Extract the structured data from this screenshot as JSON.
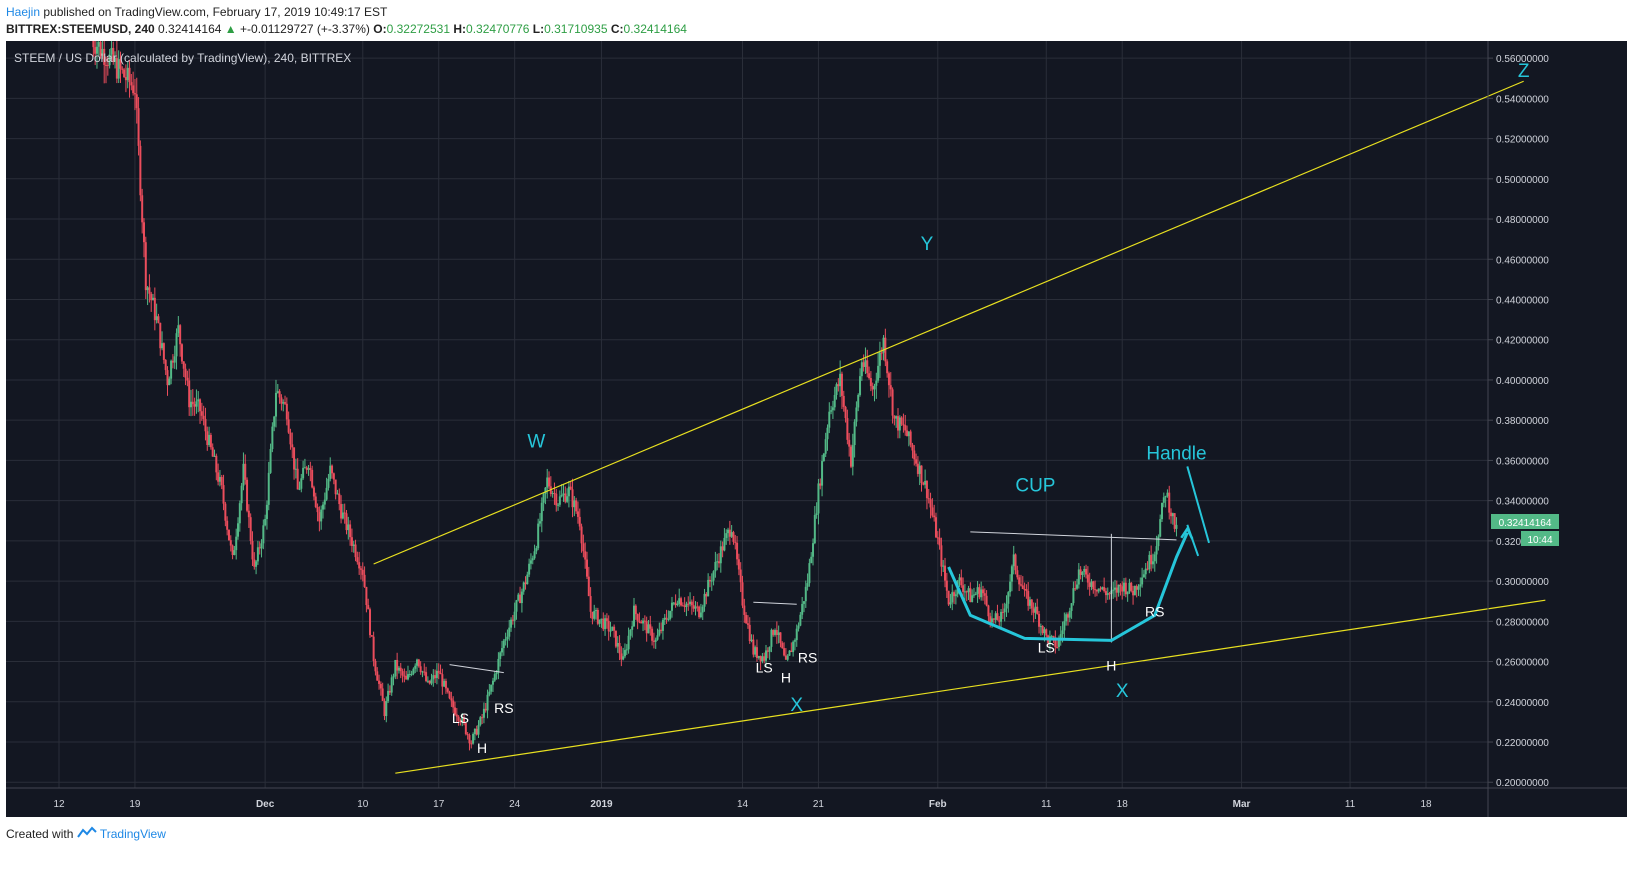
{
  "header": {
    "author": "Haejin",
    "published": "published on TradingView.com, February 17, 2019 10:49:17 EST",
    "symbol_line": "BITTREX:STEEMUSD, 240",
    "last_price": "0.32414164",
    "change_arrow": "▲",
    "change": "+-0.01129727 (+-3.37%)",
    "o_label": "O:",
    "o_value": "0.32272531",
    "h_label": "H:",
    "h_value": "0.32470776",
    "l_label": "L:",
    "l_value": "0.31710935",
    "c_label": "C:",
    "c_value": "0.32414164"
  },
  "footer": {
    "created_with": "Created with",
    "brand": "TradingView"
  },
  "colors": {
    "background": "#131722",
    "up": "#53b987",
    "down": "#eb4d5c",
    "trendline": "#e8e020",
    "annotation": "#26c6da",
    "last_price_badge": "#53b987",
    "grid": "#2a2e39",
    "axis_text": "#d1d4dc"
  },
  "chart_data": {
    "type": "candlestick",
    "title": "STEEM / US Dollar (calculated by TradingView), 240, BITTREX",
    "ylim": [
      0.19,
      0.57
    ],
    "y_ticks": [
      "0.56000000",
      "0.54000000",
      "0.52000000",
      "0.50000000",
      "0.48000000",
      "0.46000000",
      "0.44000000",
      "0.42000000",
      "0.40000000",
      "0.38000000",
      "0.36000000",
      "0.34000000",
      "0.32000000",
      "0.30000000",
      "0.28000000",
      "0.26000000",
      "0.24000000",
      "0.22000000",
      "0.20000000"
    ],
    "x_ticks": [
      {
        "label": "12",
        "date": "2018-11-12"
      },
      {
        "label": "19",
        "date": "2018-11-19"
      },
      {
        "label": "Dec",
        "date": "2018-12-01"
      },
      {
        "label": "10",
        "date": "2018-12-10"
      },
      {
        "label": "17",
        "date": "2018-12-17"
      },
      {
        "label": "24",
        "date": "2018-12-24"
      },
      {
        "label": "2019",
        "date": "2019-01-01"
      },
      {
        "label": "14",
        "date": "2019-01-14"
      },
      {
        "label": "21",
        "date": "2019-01-21"
      },
      {
        "label": "Feb",
        "date": "2019-02-01"
      },
      {
        "label": "11",
        "date": "2019-02-11"
      },
      {
        "label": "18",
        "date": "2019-02-18"
      },
      {
        "label": "Mar",
        "date": "2019-03-01"
      },
      {
        "label": "11",
        "date": "2019-03-11"
      },
      {
        "label": "18",
        "date": "2019-03-18"
      }
    ],
    "price_path": [
      [
        "2018-11-15",
        0.57
      ],
      [
        "2018-11-19",
        0.545
      ],
      [
        "2018-11-20",
        0.45
      ],
      [
        "2018-11-21",
        0.43
      ],
      [
        "2018-11-22",
        0.4
      ],
      [
        "2018-11-23",
        0.425
      ],
      [
        "2018-11-24",
        0.39
      ],
      [
        "2018-11-25",
        0.385
      ],
      [
        "2018-11-27",
        0.345
      ],
      [
        "2018-11-28",
        0.31
      ],
      [
        "2018-11-29",
        0.355
      ],
      [
        "2018-11-30",
        0.305
      ],
      [
        "2018-12-01",
        0.33
      ],
      [
        "2018-12-02",
        0.395
      ],
      [
        "2018-12-03",
        0.385
      ],
      [
        "2018-12-04",
        0.345
      ],
      [
        "2018-12-05",
        0.36
      ],
      [
        "2018-12-06",
        0.33
      ],
      [
        "2018-12-07",
        0.355
      ],
      [
        "2018-12-08",
        0.335
      ],
      [
        "2018-12-09",
        0.32
      ],
      [
        "2018-12-10",
        0.305
      ],
      [
        "2018-12-11",
        0.262
      ],
      [
        "2018-12-12",
        0.235
      ],
      [
        "2018-12-13",
        0.258
      ],
      [
        "2018-12-14",
        0.25
      ],
      [
        "2018-12-15",
        0.262
      ],
      [
        "2018-12-16",
        0.248
      ],
      [
        "2018-12-17",
        0.255
      ],
      [
        "2018-12-18",
        0.24
      ],
      [
        "2018-12-19",
        0.232
      ],
      [
        "2018-12-20",
        0.22
      ],
      [
        "2018-12-21",
        0.232
      ],
      [
        "2018-12-22",
        0.25
      ],
      [
        "2018-12-23",
        0.27
      ],
      [
        "2018-12-24",
        0.285
      ],
      [
        "2018-12-25",
        0.3
      ],
      [
        "2018-12-26",
        0.32
      ],
      [
        "2018-12-27",
        0.35
      ],
      [
        "2018-12-28",
        0.34
      ],
      [
        "2018-12-29",
        0.345
      ],
      [
        "2018-12-30",
        0.33
      ],
      [
        "2018-12-31",
        0.285
      ],
      [
        "2019-01-01",
        0.28
      ],
      [
        "2019-01-02",
        0.275
      ],
      [
        "2019-01-03",
        0.26
      ],
      [
        "2019-01-04",
        0.285
      ],
      [
        "2019-01-05",
        0.278
      ],
      [
        "2019-01-06",
        0.27
      ],
      [
        "2019-01-07",
        0.282
      ],
      [
        "2019-01-08",
        0.292
      ],
      [
        "2019-01-09",
        0.288
      ],
      [
        "2019-01-10",
        0.285
      ],
      [
        "2019-01-11",
        0.3
      ],
      [
        "2019-01-12",
        0.315
      ],
      [
        "2019-01-13",
        0.328
      ],
      [
        "2019-01-14",
        0.29
      ],
      [
        "2019-01-15",
        0.265
      ],
      [
        "2019-01-16",
        0.262
      ],
      [
        "2019-01-17",
        0.278
      ],
      [
        "2019-01-18",
        0.258
      ],
      [
        "2019-01-19",
        0.275
      ],
      [
        "2019-01-20",
        0.3
      ],
      [
        "2019-01-21",
        0.345
      ],
      [
        "2019-01-22",
        0.385
      ],
      [
        "2019-01-23",
        0.4
      ],
      [
        "2019-01-24",
        0.36
      ],
      [
        "2019-01-25",
        0.41
      ],
      [
        "2019-01-26",
        0.395
      ],
      [
        "2019-01-27",
        0.42
      ],
      [
        "2019-01-28",
        0.38
      ],
      [
        "2019-01-29",
        0.375
      ],
      [
        "2019-01-30",
        0.36
      ],
      [
        "2019-01-31",
        0.345
      ],
      [
        "2019-02-01",
        0.32
      ],
      [
        "2019-02-02",
        0.29
      ],
      [
        "2019-02-03",
        0.3
      ],
      [
        "2019-02-04",
        0.292
      ],
      [
        "2019-02-05",
        0.296
      ],
      [
        "2019-02-06",
        0.28
      ],
      [
        "2019-02-07",
        0.282
      ],
      [
        "2019-02-08",
        0.31
      ],
      [
        "2019-02-09",
        0.293
      ],
      [
        "2019-02-10",
        0.285
      ],
      [
        "2019-02-11",
        0.272
      ],
      [
        "2019-02-12",
        0.268
      ],
      [
        "2019-02-13",
        0.285
      ],
      [
        "2019-02-14",
        0.305
      ],
      [
        "2019-02-15",
        0.3
      ],
      [
        "2019-02-16",
        0.296
      ],
      [
        "2019-02-17",
        0.293
      ],
      [
        "2019-02-18",
        0.298
      ],
      [
        "2019-02-19",
        0.295
      ],
      [
        "2019-02-20",
        0.305
      ],
      [
        "2019-02-21",
        0.315
      ],
      [
        "2019-02-22",
        0.345
      ],
      [
        "2019-02-23",
        0.32414
      ]
    ],
    "annotations": [
      {
        "text": "W",
        "date": "2018-12-26",
        "price": 0.3665,
        "kind": "wave"
      },
      {
        "text": "Y",
        "date": "2019-01-31",
        "price": 0.4645,
        "kind": "wave"
      },
      {
        "text": "Z",
        "date": "2019-03-27",
        "price": 0.5505,
        "kind": "wave"
      },
      {
        "text": "X",
        "date": "2019-01-19",
        "price": 0.2355,
        "kind": "wave"
      },
      {
        "text": "X",
        "date": "2019-02-18",
        "price": 0.2425,
        "kind": "wave"
      },
      {
        "text": "Handle",
        "date": "2019-02-23",
        "price": 0.3605,
        "kind": "wave"
      },
      {
        "text": "CUP",
        "date": "2019-02-10",
        "price": 0.3445,
        "kind": "wave"
      },
      {
        "text": "LS",
        "date": "2018-12-19",
        "price": 0.2295,
        "kind": "small"
      },
      {
        "text": "H",
        "date": "2018-12-21",
        "price": 0.2145,
        "kind": "small"
      },
      {
        "text": "RS",
        "date": "2018-12-23",
        "price": 0.2345,
        "kind": "small"
      },
      {
        "text": "LS",
        "date": "2019-01-16",
        "price": 0.2545,
        "kind": "small"
      },
      {
        "text": "H",
        "date": "2019-01-18",
        "price": 0.2495,
        "kind": "small"
      },
      {
        "text": "RS",
        "date": "2019-01-20",
        "price": 0.2595,
        "kind": "small"
      },
      {
        "text": "LS",
        "date": "2019-02-11",
        "price": 0.2645,
        "kind": "small"
      },
      {
        "text": "H",
        "date": "2019-02-17",
        "price": 0.2555,
        "kind": "small"
      },
      {
        "text": "RS",
        "date": "2019-02-21",
        "price": 0.2825,
        "kind": "small"
      }
    ],
    "trendlines": [
      {
        "from": [
          "2018-12-11",
          0.3085
        ],
        "to": [
          "2019-03-27",
          0.5485
        ],
        "color": "#e8e020"
      },
      {
        "from": [
          "2018-12-13",
          0.2045
        ],
        "to": [
          "2019-03-29",
          0.2905
        ],
        "color": "#e8e020"
      }
    ],
    "necklines": [
      {
        "from": [
          "2018-12-18",
          0.2585
        ],
        "to": [
          "2018-12-23",
          0.2545
        ]
      },
      {
        "from": [
          "2019-01-15",
          0.2895
        ],
        "to": [
          "2019-01-19",
          0.2885
        ]
      },
      {
        "from": [
          "2019-02-04",
          0.3245
        ],
        "to": [
          "2019-02-23",
          0.3205
        ]
      },
      {
        "from": [
          "2019-02-17",
          0.3235
        ],
        "to": [
          "2019-02-17",
          0.2695
        ]
      }
    ],
    "last_price": {
      "value": "0.32414164",
      "countdown": "10:44"
    }
  }
}
